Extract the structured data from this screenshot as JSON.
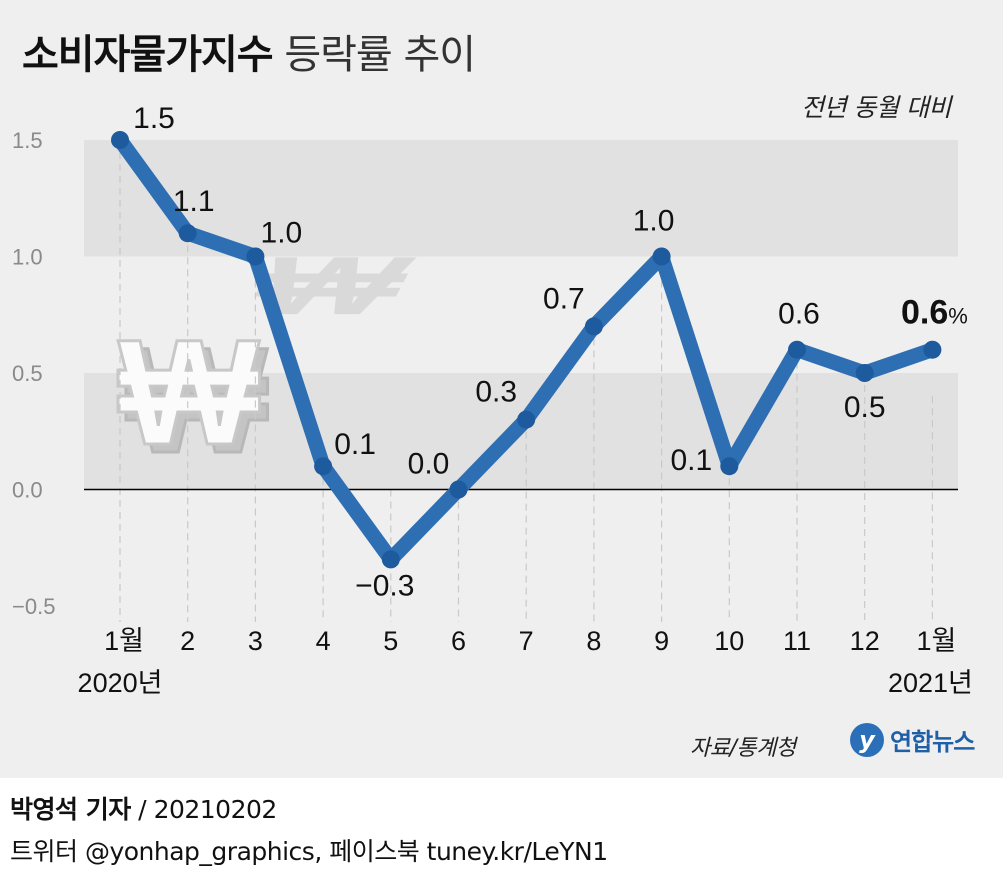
{
  "title": {
    "bold": "소비자물가지수",
    "light": "등락률 추이"
  },
  "unit_note": "전년 동월 대비",
  "source": "자료/통계청",
  "logo": {
    "mark": "y",
    "text": "연합뉴스"
  },
  "credit": {
    "name": "박영석 기자",
    "separator": "/",
    "date": "20210202"
  },
  "credit2": "트위터 @yonhap_graphics, 페이스북 tuney.kr/LeYN1",
  "colors": {
    "line": "#2e6fb3",
    "band": "#e1e1e1",
    "background": "#efefef",
    "zero_line": "#000000"
  },
  "chart_data": {
    "type": "line",
    "categories": [
      "1월",
      "2",
      "3",
      "4",
      "5",
      "6",
      "7",
      "8",
      "9",
      "10",
      "11",
      "12",
      "1월"
    ],
    "year_labels": [
      "2020년",
      "2021년"
    ],
    "series": [
      {
        "values": [
          1.5,
          1.1,
          1.0,
          0.1,
          -0.3,
          0.0,
          0.3,
          0.7,
          1.0,
          0.1,
          0.6,
          0.5,
          0.6
        ]
      }
    ],
    "data_labels": [
      "1.5",
      "1.1",
      "1.0",
      "0.1",
      "−0.3",
      "0.0",
      "0.3",
      "0.7",
      "1.0",
      "0.1",
      "0.6",
      "0.5",
      "0.6"
    ],
    "last_label_unit": "%",
    "yticks": [
      "1.5",
      "1.0",
      "0.5",
      "0.0",
      "−0.5"
    ],
    "ytick_values": [
      1.5,
      1.0,
      0.5,
      0.0,
      -0.5
    ],
    "ylim": [
      -0.5,
      1.5
    ],
    "unit": "%",
    "grid": "horizontal bands",
    "decoration": "won-symbol-icon"
  }
}
